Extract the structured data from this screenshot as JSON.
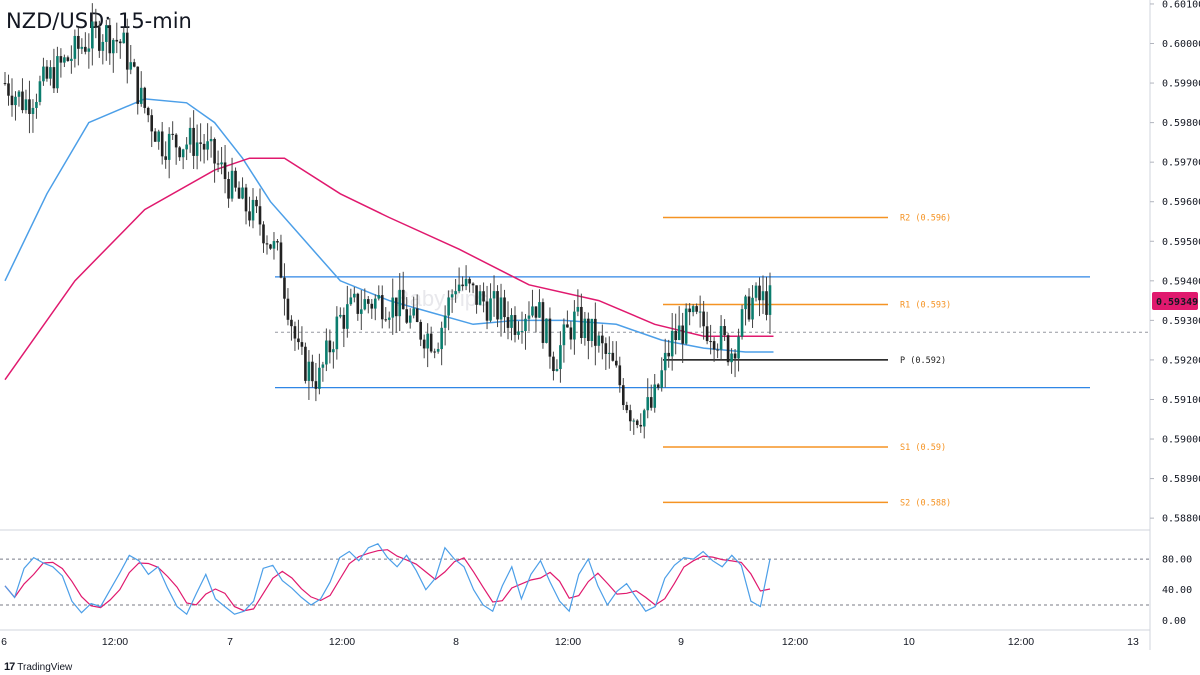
{
  "title": "NZD/USD: 15-min",
  "watermark": "BabyPips",
  "branding": "TradingView",
  "colors": {
    "up": "#0b7d6e",
    "down": "#222222",
    "wick": "#444444",
    "sma_fast": "#4c9fe8",
    "sma_slow": "#e0196e",
    "range": "#2f86e6",
    "pivot_lines": "#f59323",
    "pivot": "#111111",
    "stoch_k": "#4c9fe8",
    "stoch_d": "#e0196e"
  },
  "price_badge": "0.59349",
  "chart_data": {
    "type": "candlestick",
    "title": "NZD/USD: 15-min",
    "y_axis": {
      "ylim": [
        0.5877,
        0.6011
      ],
      "ticks": [
        "0.60100",
        "0.60000",
        "0.59900",
        "0.59800",
        "0.59700",
        "0.59600",
        "0.59500",
        "0.59400",
        "0.59300",
        "0.59200",
        "0.59100",
        "0.59000",
        "0.58900",
        "0.58800"
      ]
    },
    "x_axis": {
      "ticks": [
        "6",
        "12:00",
        "7",
        "12:00",
        "8",
        "12:00",
        "9",
        "12:00",
        "10",
        "12:00",
        "13"
      ]
    },
    "ohlc_anchors": [
      [
        0.599,
        0.5985,
        0.599,
        0.5995,
        0.6,
        0.6003,
        0.6,
        0.5985,
        0.5975,
        0.5975,
        0.5975,
        0.5968,
        0.596,
        0.5955,
        0.5945,
        0.592,
        0.5915,
        0.593,
        0.5934,
        0.5935,
        0.5934,
        0.5928,
        0.5925,
        0.594,
        0.5936,
        0.5933,
        0.593,
        0.5935,
        0.592,
        0.593,
        0.5926,
        0.5918,
        0.5906,
        0.5908,
        0.5925,
        0.593,
        0.5928,
        0.5922,
        0.5935,
        0.5935
      ]
    ],
    "moving_averages": [
      {
        "name": "sma_fast",
        "x": [
          0,
          12,
          24,
          40,
          52,
          60,
          68,
          76,
          86,
          96,
          110,
          122,
          134,
          146,
          160,
          175,
          188,
          200,
          212,
          220
        ],
        "y": [
          0.594,
          0.5962,
          0.598,
          0.5986,
          0.5985,
          0.598,
          0.5971,
          0.596,
          0.595,
          0.594,
          0.5935,
          0.5932,
          0.5929,
          0.593,
          0.593,
          0.5929,
          0.5925,
          0.5923,
          0.5922,
          0.5922
        ]
      },
      {
        "name": "sma_slow",
        "x": [
          0,
          20,
          40,
          60,
          70,
          80,
          96,
          110,
          130,
          150,
          170,
          186,
          200,
          212,
          220
        ],
        "y": [
          0.5915,
          0.594,
          0.5958,
          0.5968,
          0.5971,
          0.5971,
          0.5962,
          0.5956,
          0.5948,
          0.5939,
          0.5935,
          0.5929,
          0.5926,
          0.5926,
          0.5926
        ]
      }
    ],
    "levels": [
      {
        "name": "range_high",
        "value": 0.5941,
        "label": ""
      },
      {
        "name": "range_low",
        "value": 0.5913,
        "label": ""
      },
      {
        "name": "R2",
        "value": 0.5956,
        "label": "R2 (0.596)"
      },
      {
        "name": "R1",
        "value": 0.5934,
        "label": "R1 (0.593)"
      },
      {
        "name": "P",
        "value": 0.592,
        "label": "P (0.592)"
      },
      {
        "name": "S1",
        "value": 0.5898,
        "label": "S1 (0.59)"
      },
      {
        "name": "S2",
        "value": 0.5884,
        "label": "S2 (0.588)"
      }
    ],
    "stochastic": {
      "ylim": [
        -10,
        105
      ],
      "ticks": [
        "80.00",
        "40.00",
        "0.00"
      ],
      "levels": [
        80,
        20
      ],
      "k": [
        45,
        30,
        68,
        82,
        75,
        70,
        58,
        25,
        10,
        22,
        18,
        40,
        62,
        85,
        78,
        60,
        70,
        42,
        18,
        8,
        35,
        60,
        28,
        18,
        8,
        12,
        25,
        68,
        72,
        52,
        42,
        30,
        20,
        28,
        50,
        82,
        90,
        78,
        95,
        100,
        82,
        70,
        85,
        65,
        40,
        55,
        95,
        80,
        70,
        40,
        20,
        12,
        45,
        70,
        28,
        60,
        78,
        50,
        25,
        12,
        60,
        80,
        45,
        20,
        38,
        48,
        30,
        12,
        18,
        55,
        72,
        82,
        80,
        90,
        78,
        70,
        85,
        72,
        25,
        18,
        80
      ]
    }
  }
}
